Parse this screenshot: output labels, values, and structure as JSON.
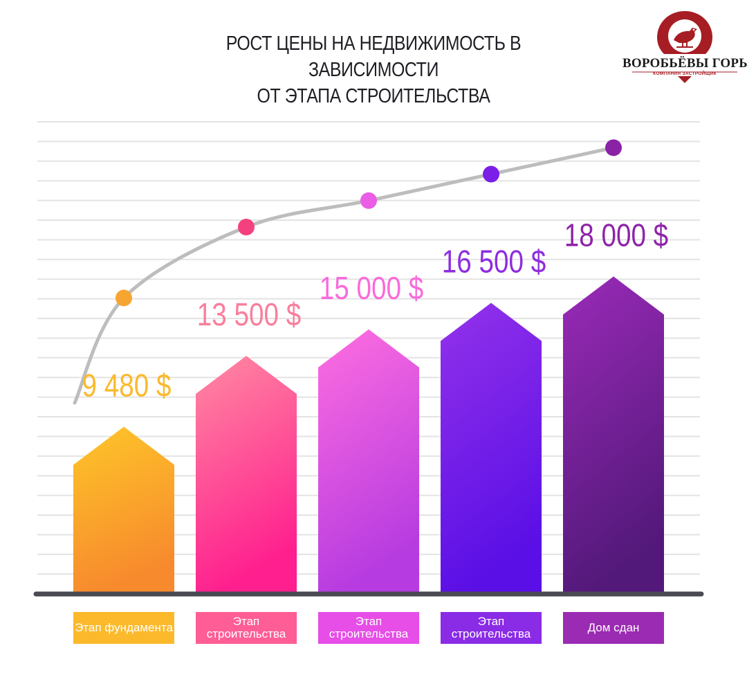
{
  "title_lines": [
    "РОСТ ЦЕНЫ НА НЕДВИЖИМОСТЬ В ЗАВИСИМОСТИ",
    "ОТ ЭТАПА СТРОИТЕЛЬСТВА"
  ],
  "logo": {
    "name": "ВОРОБЬЁВЫ ГОРЫ",
    "subtitle": "КОМПАНИЯ ЗАСТРОЙЩИК",
    "icon": "bird-on-map-pin-logo",
    "color": "#a61d24"
  },
  "chart_data": {
    "type": "bar",
    "title": "РОСТ ЦЕНЫ НА НЕДВИЖИМОСТЬ В ЗАВИСИМОСТИ ОТ ЭТАПА СТРОИТЕЛЬСТВА",
    "categories": [
      "Этап фундамента",
      "Этап строительства",
      "Этап строительства",
      "Этап строительства",
      "Дом сдан"
    ],
    "values": [
      9480,
      13500,
      15000,
      16500,
      18000
    ],
    "value_labels": [
      "9 480 $",
      "13 500 $",
      "15 000 $",
      "16 500 $",
      "18 000 $"
    ],
    "ylim": [
      0,
      27000
    ],
    "grid": true,
    "bar_shape": "house",
    "trend_line": true,
    "colors": {
      "label": [
        "#fbb92b",
        "#f87f9d",
        "#f86bdc",
        "#8e2de0",
        "#8e24aa"
      ],
      "bar_top": [
        "#fec629",
        "#ff8aa2",
        "#ff6ee0",
        "#9332ea",
        "#9a2ab8"
      ],
      "bar_bottom": [
        "#f78a2d",
        "#ff1f8e",
        "#b63be0",
        "#5a0fe6",
        "#53197a"
      ],
      "category_box": [
        "#fbb92b",
        "#ff5d95",
        "#e64ee7",
        "#8a2be6",
        "#9b2bb2"
      ],
      "marker": [
        "#f7a531",
        "#f4407e",
        "#e95ee4",
        "#7a1ee8",
        "#8a22a6"
      ],
      "trend": "#bdbdbd",
      "grid": "#e3e3e3",
      "axis": "#4a4a52"
    }
  }
}
